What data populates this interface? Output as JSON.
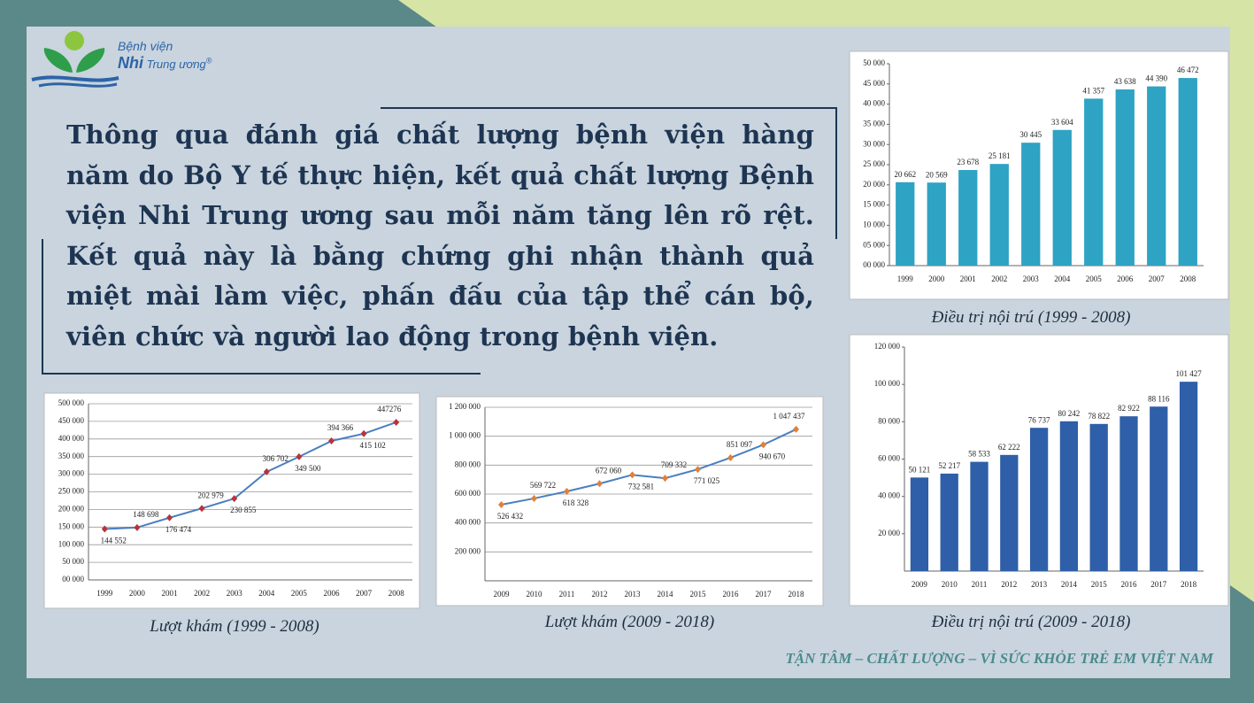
{
  "logo": {
    "line1": "Bệnh viện",
    "line2a": "Nhi",
    "line2b": "Trung ương",
    "mark": "®"
  },
  "paragraph": "Thông qua đánh giá chất lượng bệnh viện hàng năm do Bộ Y tế thực hiện, kết quả chất lượng Bệnh viện Nhi Trung ương sau mỗi năm tăng lên rõ rệt. Kết quả này là bằng chứng ghi nhận thành quả miệt mài làm việc, phấn đấu của tập thể cán bộ, viên chức và người lao động trong bệnh viện.",
  "footer": "TẬN TÂM – CHẤT LƯỢNG – VÌ SỨC KHỎE TRẺ EM VIỆT NAM",
  "chart_data": [
    {
      "type": "line",
      "caption": "Lượt khám (1999 - 2008)",
      "categories": [
        "1999",
        "2000",
        "2001",
        "2002",
        "2003",
        "2004",
        "2005",
        "2006",
        "2007",
        "2008"
      ],
      "values": [
        144552,
        148698,
        176474,
        202979,
        230855,
        306702,
        349500,
        394366,
        415102,
        447276
      ],
      "value_labels": [
        "144 552",
        "148 698",
        "176 474",
        "202 979",
        "230 855",
        "306 702",
        "349 500",
        "394 366",
        "415 102",
        "447276"
      ],
      "color": "#4a7fc0",
      "marker_color": "#b8333a",
      "grid": true,
      "ylim": [
        0,
        500000
      ],
      "yticks": [
        {
          "value": 0,
          "label": "00 000"
        },
        {
          "value": 50000,
          "label": "50 000"
        },
        {
          "value": 100000,
          "label": "100 000"
        },
        {
          "value": 150000,
          "label": "150 000"
        },
        {
          "value": 200000,
          "label": "200 000"
        },
        {
          "value": 250000,
          "label": "250 000"
        },
        {
          "value": 300000,
          "label": "300 000"
        },
        {
          "value": 350000,
          "label": "350 000"
        },
        {
          "value": 400000,
          "label": "400 000"
        },
        {
          "value": 450000,
          "label": "450 000"
        },
        {
          "value": 500000,
          "label": "500 000"
        }
      ]
    },
    {
      "type": "line",
      "caption": "Lượt khám (2009 - 2018)",
      "categories": [
        "2009",
        "2010",
        "2011",
        "2012",
        "2013",
        "2014",
        "2015",
        "2016",
        "2017",
        "2018"
      ],
      "values": [
        526432,
        569722,
        618328,
        672060,
        732581,
        709332,
        771025,
        851097,
        940670,
        1047437
      ],
      "value_labels": [
        "526 432",
        "569 722",
        "618 328",
        "672 060",
        "732 581",
        "709 332",
        "771 025",
        "851 097",
        "940 670",
        "1 047 437"
      ],
      "color": "#4a7fc0",
      "marker_color": "#e0803a",
      "grid": true,
      "ylim": [
        0,
        1200000
      ],
      "yticks": [
        {
          "value": 200000,
          "label": "200 000"
        },
        {
          "value": 400000,
          "label": "400 000"
        },
        {
          "value": 600000,
          "label": "600 000"
        },
        {
          "value": 800000,
          "label": "800 000"
        },
        {
          "value": 1000000,
          "label": "1 000 000"
        },
        {
          "value": 1200000,
          "label": "1 200 000"
        }
      ]
    },
    {
      "type": "bar",
      "caption": "Điều trị nội trú (1999 - 2008)",
      "categories": [
        "1999",
        "2000",
        "2001",
        "2002",
        "2003",
        "2004",
        "2005",
        "2006",
        "2007",
        "2008"
      ],
      "values": [
        20662,
        20569,
        23678,
        25181,
        30445,
        33604,
        41357,
        43638,
        44390,
        46472
      ],
      "value_labels": [
        "20 662",
        "20 569",
        "23 678",
        "25 181",
        "30 445",
        "33 604",
        "41 357",
        "43 638",
        "44 390",
        "46 472"
      ],
      "color": "#2ea3c4",
      "grid": false,
      "ylim": [
        0,
        50000
      ],
      "yticks": [
        {
          "value": 0,
          "label": "00 000"
        },
        {
          "value": 5000,
          "label": "05 000"
        },
        {
          "value": 10000,
          "label": "10 000"
        },
        {
          "value": 15000,
          "label": "15 000"
        },
        {
          "value": 20000,
          "label": "20 000"
        },
        {
          "value": 25000,
          "label": "25 000"
        },
        {
          "value": 30000,
          "label": "30 000"
        },
        {
          "value": 35000,
          "label": "35 000"
        },
        {
          "value": 40000,
          "label": "40 000"
        },
        {
          "value": 45000,
          "label": "45 000"
        },
        {
          "value": 50000,
          "label": "50 000"
        }
      ]
    },
    {
      "type": "bar",
      "caption": "Điều trị nội trú (2009 - 2018)",
      "categories": [
        "2009",
        "2010",
        "2011",
        "2012",
        "2013",
        "2014",
        "2015",
        "2016",
        "2017",
        "2018"
      ],
      "values": [
        50121,
        52217,
        58533,
        62222,
        76737,
        80242,
        78822,
        82922,
        88116,
        101427
      ],
      "value_labels": [
        "50 121",
        "52 217",
        "58 533",
        "62 222",
        "76 737",
        "80 242",
        "78 822",
        "82 922",
        "88 116",
        "101 427"
      ],
      "color": "#2e5fa8",
      "grid": false,
      "ylim": [
        0,
        120000
      ],
      "yticks": [
        {
          "value": 20000,
          "label": "20 000"
        },
        {
          "value": 40000,
          "label": "40 000"
        },
        {
          "value": 60000,
          "label": "60 000"
        },
        {
          "value": 80000,
          "label": "80 000"
        },
        {
          "value": 100000,
          "label": "100 000"
        },
        {
          "value": 120000,
          "label": "120 000"
        }
      ]
    }
  ]
}
